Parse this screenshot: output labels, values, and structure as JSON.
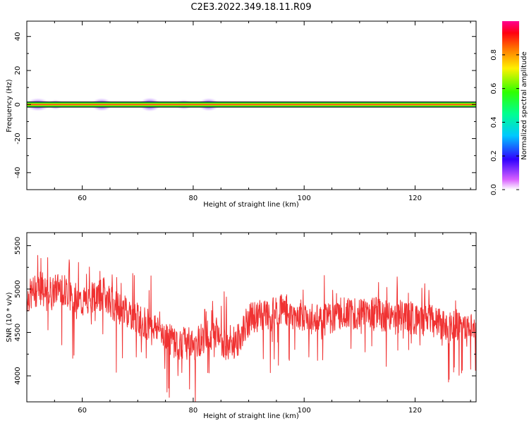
{
  "title": "C2E3.2022.349.18.11.R09",
  "chart_data": [
    {
      "type": "heatmap",
      "xlabel": "Height of straight line (km)",
      "ylabel": "Frequency (Hz)",
      "xlim": [
        50,
        131
      ],
      "ylim": [
        -50,
        49
      ],
      "xticks": [
        60,
        80,
        100,
        120
      ],
      "yticks": [
        40,
        20,
        0,
        -20,
        -40
      ],
      "band": {
        "center_hz": 0,
        "halfwidth_hz": 1.5
      },
      "blobs": [
        {
          "x": 52.0,
          "width_km": 1.6,
          "strength": 0.9
        },
        {
          "x": 55.2,
          "width_km": 1.0,
          "strength": 0.55
        },
        {
          "x": 63.5,
          "width_km": 1.4,
          "strength": 0.9
        },
        {
          "x": 72.2,
          "width_km": 1.4,
          "strength": 1.0
        },
        {
          "x": 78.3,
          "width_km": 1.2,
          "strength": 0.55
        },
        {
          "x": 82.8,
          "width_km": 1.4,
          "strength": 0.9
        }
      ],
      "colorbar": {
        "label": "Normalized spectral amplitude",
        "ticks": [
          0.0,
          0.2,
          0.4,
          0.6,
          0.8
        ],
        "tick_labels": [
          "0.0",
          "0.2",
          "0.4",
          "0.6",
          "0.8"
        ],
        "range": [
          0,
          1
        ],
        "colormap": "gist_rainbow"
      }
    },
    {
      "type": "line",
      "xlabel": "Height of straight line (km)",
      "ylabel": "SNR (10 * v/v)",
      "xlim": [
        50,
        131
      ],
      "ylim": [
        3700,
        5650
      ],
      "xticks": [
        60,
        80,
        100,
        120
      ],
      "yticks": [
        4000,
        4500,
        5000,
        5500
      ],
      "series": [
        {
          "color": "#f03232",
          "x": [
            50,
            52,
            54,
            56,
            58,
            60,
            62,
            64,
            66,
            68,
            70,
            72,
            74,
            76,
            78,
            80,
            82,
            84,
            86,
            88,
            90,
            92,
            94,
            96,
            98,
            100,
            102,
            104,
            106,
            108,
            110,
            112,
            114,
            116,
            118,
            120,
            122,
            124,
            126,
            128,
            130,
            131
          ],
          "values": [
            4900,
            5000,
            4900,
            5050,
            4900,
            4850,
            4900,
            4950,
            4800,
            4750,
            4650,
            4600,
            4550,
            4400,
            4400,
            4350,
            4450,
            4500,
            4350,
            4400,
            4650,
            4700,
            4700,
            4800,
            4700,
            4700,
            4650,
            4650,
            4700,
            4750,
            4700,
            4750,
            4700,
            4650,
            4700,
            4650,
            4650,
            4600,
            4550,
            4600,
            4550,
            4600
          ]
        }
      ]
    }
  ]
}
